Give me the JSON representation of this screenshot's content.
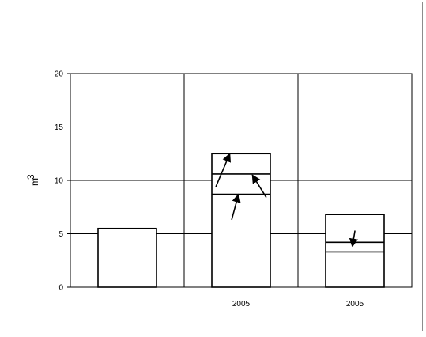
{
  "chart_data": {
    "type": "bar",
    "title": "",
    "xlabel": "",
    "ylabel": "m",
    "ylabel_superscript": "3",
    "ylim": [
      0,
      20
    ],
    "yticks": [
      0,
      5,
      10,
      15,
      20
    ],
    "grid": true,
    "categories": [
      "",
      "2005",
      "2005"
    ],
    "bars": [
      {
        "total": 5.5,
        "divisions": []
      },
      {
        "total": 12.5,
        "divisions": [
          8.7,
          10.6
        ]
      },
      {
        "total": 6.8,
        "divisions": [
          3.3,
          4.2
        ]
      }
    ],
    "annotations": [
      {
        "type": "arrow",
        "category_index": 1,
        "x_offset": -0.35,
        "from": 9.4,
        "to": 12.5
      },
      {
        "type": "arrow",
        "category_index": 1,
        "x_offset": 0.35,
        "from": 8.4,
        "to": 10.5
      },
      {
        "type": "arrow",
        "category_index": 1,
        "x_offset": -0.08,
        "from": 6.3,
        "to": 8.7
      },
      {
        "type": "arrow",
        "category_index": 2,
        "x_offset": -0.08,
        "from": 5.3,
        "to": 3.8
      }
    ]
  }
}
